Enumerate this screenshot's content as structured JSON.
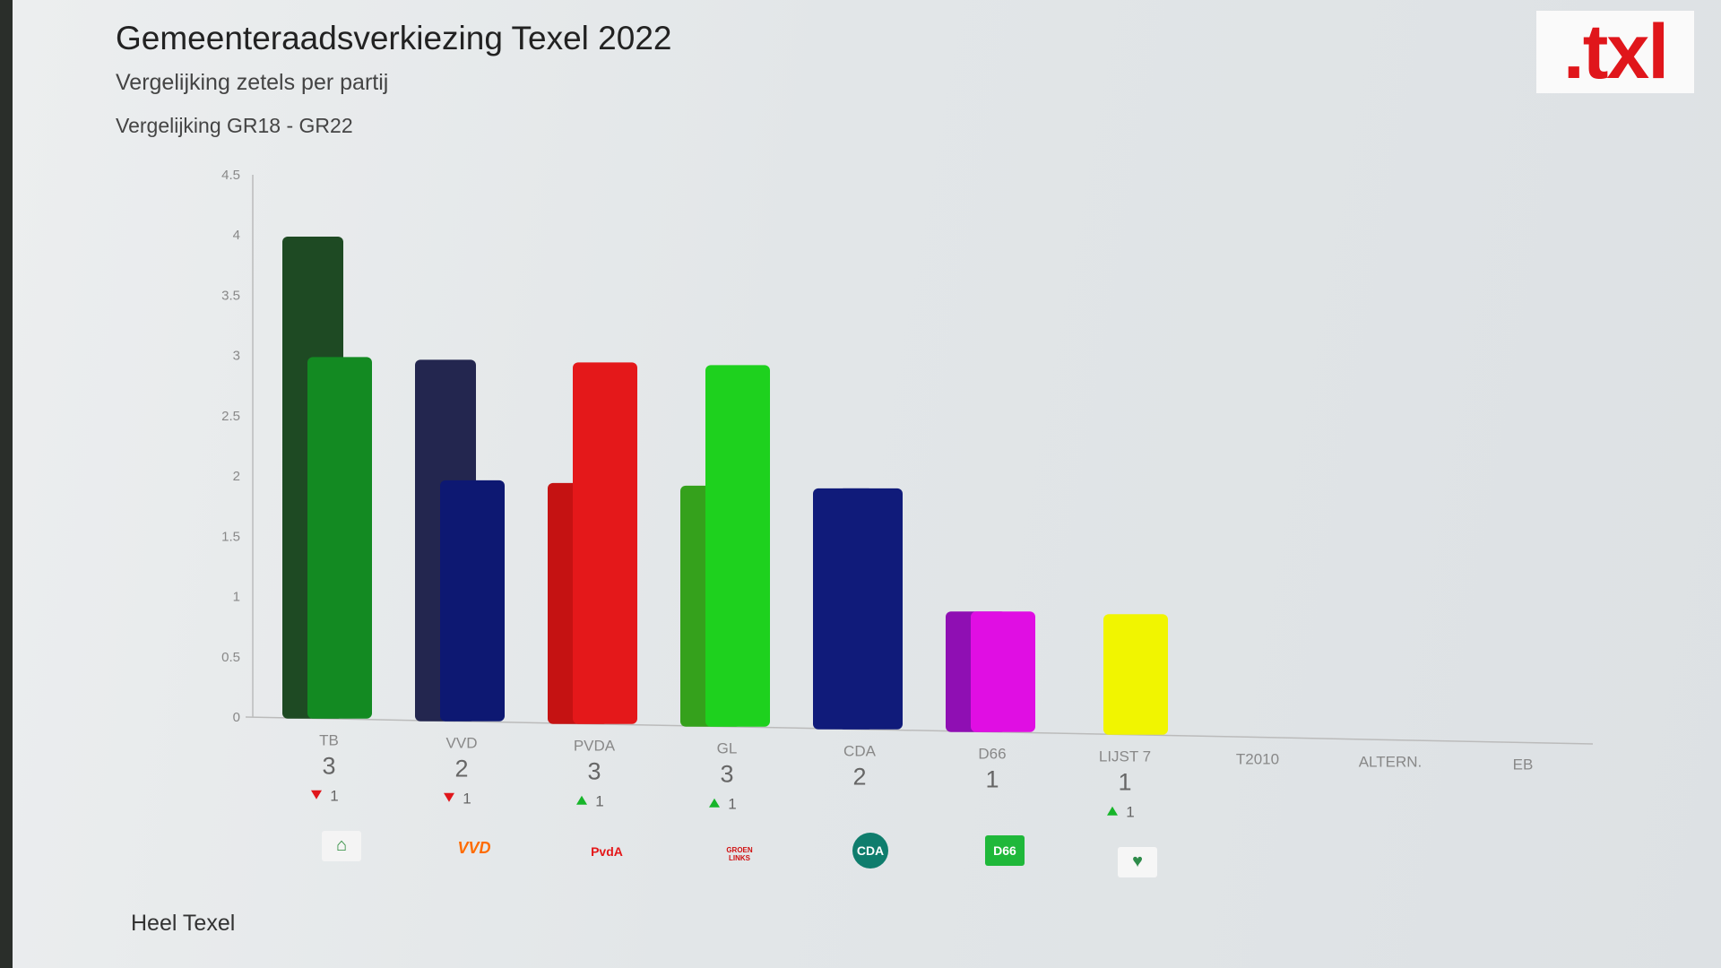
{
  "header": {
    "title": "Gemeenteraadsverkiezing Texel 2022",
    "subtitle": "Vergelijking zetels per partij",
    "comparison": "Vergelijking GR18 - GR22",
    "logo": ".txl"
  },
  "footer": {
    "area": "Heel Texel"
  },
  "chart_data": {
    "type": "bar",
    "ylim": [
      0,
      4.5
    ],
    "yticks": [
      "0",
      "0.5",
      "1",
      "1.5",
      "2",
      "2.5",
      "3",
      "3.5",
      "4",
      "4.5"
    ],
    "yvalues": [
      0,
      0.5,
      1,
      1.5,
      2,
      2.5,
      3,
      3.5,
      4,
      4.5
    ],
    "categories": [
      "TB",
      "VVD",
      "PVDA",
      "GL",
      "CDA",
      "D66",
      "LIJST 7",
      "T2010",
      "ALTERN.",
      "EB"
    ],
    "series": [
      {
        "values": [
          4,
          3,
          2,
          2,
          2,
          1,
          0,
          0,
          0,
          0
        ]
      },
      {
        "values": [
          3,
          2,
          3,
          3,
          2,
          1,
          1,
          0,
          0,
          0
        ]
      }
    ],
    "colors_gr18": [
      "#1e4a23",
      "#23264f",
      "#c51212",
      "#35a11c",
      "#101b7a",
      "#8f0fb3",
      "#e8ed00",
      "",
      "",
      ""
    ],
    "colors_gr22": [
      "#138a22",
      "#0d1872",
      "#e4181a",
      "#1ed11e",
      "#101b7a",
      "#e00ee3",
      "#f1f500",
      "",
      "",
      ""
    ],
    "seats_labels": [
      "3",
      "2",
      "3",
      "3",
      "2",
      "1",
      "1",
      "",
      "",
      ""
    ],
    "changes": [
      {
        "direction": "down",
        "amount": "1",
        "color": "#e0161b"
      },
      {
        "direction": "down",
        "amount": "1",
        "color": "#e0161b"
      },
      {
        "direction": "up",
        "amount": "1",
        "color": "#17b52a"
      },
      {
        "direction": "up",
        "amount": "1",
        "color": "#17b52a"
      },
      null,
      null,
      {
        "direction": "up",
        "amount": "1",
        "color": "#17b52a"
      },
      null,
      null,
      null
    ],
    "party_logos": [
      {
        "icon": "texels-belang-logo-icon",
        "text": "",
        "bg": "#f4f4f4",
        "color": "#2a8a3a"
      },
      {
        "icon": "vvd-logo-icon",
        "text": "VVD",
        "bg": "transparent",
        "color": "#ff6b00"
      },
      {
        "icon": "pvda-logo-icon",
        "text": "PvdA",
        "bg": "transparent",
        "color": "#e4181a"
      },
      {
        "icon": "groenlinks-logo-icon",
        "text": "GROEN LINKS",
        "bg": "transparent",
        "color": "#d01010"
      },
      {
        "icon": "cda-logo-icon",
        "text": "CDA",
        "bg": "#0f7d6d",
        "color": "#ffffff"
      },
      {
        "icon": "d66-logo-icon",
        "text": "D66",
        "bg": "#1fb83a",
        "color": "#ffffff"
      },
      {
        "icon": "lijst7-logo-icon",
        "text": "",
        "bg": "#f6f6f6",
        "color": "#2e8b4a"
      }
    ]
  }
}
